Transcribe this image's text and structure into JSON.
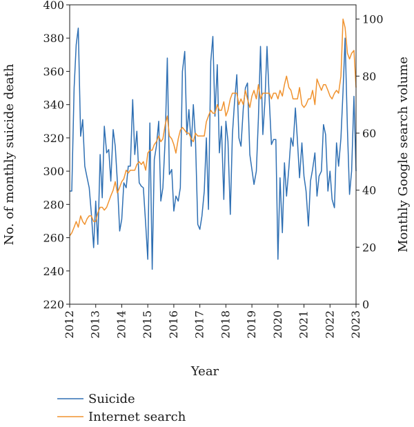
{
  "chart_data": {
    "type": "line",
    "xlabel": "Year",
    "ylabel_left": "No. of monthly suicide death",
    "ylabel_right": "Monthly Google search volume",
    "xlim": [
      2012,
      2023
    ],
    "ylim_left": [
      220,
      400
    ],
    "ylim_right": [
      0,
      105
    ],
    "x_ticks": [
      "2012",
      "2013",
      "2014",
      "2015",
      "2016",
      "2017",
      "2018",
      "2019",
      "2020",
      "2021",
      "2022",
      "2023"
    ],
    "y_left_ticks": [
      "220",
      "240",
      "260",
      "280",
      "300",
      "320",
      "340",
      "360",
      "380",
      "400"
    ],
    "y_right_ticks": [
      "0",
      "20",
      "40",
      "60",
      "80",
      "100"
    ],
    "grid": false,
    "legend_position": "bottom-left",
    "series": [
      {
        "name": "Suicide",
        "axis": "left",
        "color": "#2e6fb3",
        "x": [
          2012.0,
          2012.08,
          2012.17,
          2012.25,
          2012.33,
          2012.42,
          2012.5,
          2012.58,
          2012.67,
          2012.75,
          2012.83,
          2012.92,
          2013.0,
          2013.08,
          2013.17,
          2013.25,
          2013.33,
          2013.42,
          2013.5,
          2013.58,
          2013.67,
          2013.75,
          2013.83,
          2013.92,
          2014.0,
          2014.08,
          2014.17,
          2014.25,
          2014.33,
          2014.42,
          2014.5,
          2014.58,
          2014.67,
          2014.75,
          2014.83,
          2014.92,
          2015.0,
          2015.08,
          2015.17,
          2015.25,
          2015.33,
          2015.42,
          2015.5,
          2015.58,
          2015.67,
          2015.75,
          2015.83,
          2015.92,
          2016.0,
          2016.08,
          2016.17,
          2016.25,
          2016.33,
          2016.42,
          2016.5,
          2016.58,
          2016.67,
          2016.75,
          2016.83,
          2016.92,
          2017.0,
          2017.08,
          2017.17,
          2017.25,
          2017.33,
          2017.42,
          2017.5,
          2017.58,
          2017.67,
          2017.75,
          2017.83,
          2017.92,
          2018.0,
          2018.08,
          2018.17,
          2018.25,
          2018.33,
          2018.42,
          2018.5,
          2018.58,
          2018.67,
          2018.75,
          2018.83,
          2018.92,
          2019.0,
          2019.08,
          2019.17,
          2019.25,
          2019.33,
          2019.42,
          2019.5,
          2019.58,
          2019.67,
          2019.75,
          2019.83,
          2019.92,
          2020.0,
          2020.08,
          2020.17,
          2020.25,
          2020.33,
          2020.42,
          2020.5,
          2020.58,
          2020.67,
          2020.75,
          2020.83,
          2020.92,
          2021.0,
          2021.08,
          2021.17,
          2021.25,
          2021.33,
          2021.42,
          2021.5,
          2021.58,
          2021.67,
          2021.75,
          2021.83,
          2021.92,
          2022.0,
          2022.08,
          2022.17,
          2022.25,
          2022.33,
          2022.42,
          2022.5,
          2022.58,
          2022.67,
          2022.75,
          2022.83,
          2022.92,
          2023.0
        ],
        "y": [
          288,
          288,
          350,
          376,
          386,
          321,
          331,
          303,
          296,
          290,
          275,
          254,
          282,
          256,
          310,
          284,
          327,
          311,
          313,
          294,
          325,
          315,
          294,
          264,
          271,
          293,
          290,
          303,
          303,
          343,
          310,
          324,
          293,
          291,
          290,
          268,
          247,
          329,
          241,
          307,
          315,
          330,
          282,
          290,
          320,
          368,
          298,
          301,
          276,
          285,
          282,
          290,
          360,
          372,
          322,
          337,
          315,
          340,
          320,
          268,
          265,
          273,
          288,
          320,
          277,
          366,
          381,
          333,
          364,
          311,
          327,
          283,
          330,
          318,
          274,
          322,
          341,
          358,
          320,
          315,
          338,
          350,
          353,
          310,
          301,
          292,
          300,
          332,
          375,
          322,
          342,
          375,
          342,
          316,
          319,
          319,
          247,
          296,
          263,
          305,
          285,
          302,
          320,
          315,
          338,
          318,
          296,
          317,
          297,
          288,
          267,
          294,
          301,
          311,
          285,
          297,
          300,
          328,
          322,
          288,
          300,
          283,
          278,
          317,
          303,
          320,
          348,
          380,
          325,
          286,
          300,
          345,
          300
        ]
      },
      {
        "name": "Internet search",
        "axis": "right",
        "color": "#f0922e",
        "x": [
          2012.0,
          2012.08,
          2012.17,
          2012.25,
          2012.33,
          2012.42,
          2012.5,
          2012.58,
          2012.67,
          2012.75,
          2012.83,
          2012.92,
          2013.0,
          2013.08,
          2013.17,
          2013.25,
          2013.33,
          2013.42,
          2013.5,
          2013.58,
          2013.67,
          2013.75,
          2013.83,
          2013.92,
          2014.0,
          2014.08,
          2014.17,
          2014.25,
          2014.33,
          2014.42,
          2014.5,
          2014.58,
          2014.67,
          2014.75,
          2014.83,
          2014.92,
          2015.0,
          2015.08,
          2015.17,
          2015.25,
          2015.33,
          2015.42,
          2015.5,
          2015.58,
          2015.67,
          2015.75,
          2015.83,
          2015.92,
          2016.0,
          2016.08,
          2016.17,
          2016.25,
          2016.33,
          2016.42,
          2016.5,
          2016.58,
          2016.67,
          2016.75,
          2016.83,
          2016.92,
          2017.0,
          2017.08,
          2017.17,
          2017.25,
          2017.33,
          2017.42,
          2017.5,
          2017.58,
          2017.67,
          2017.75,
          2017.83,
          2017.92,
          2018.0,
          2018.08,
          2018.17,
          2018.25,
          2018.33,
          2018.42,
          2018.5,
          2018.58,
          2018.67,
          2018.75,
          2018.83,
          2018.92,
          2019.0,
          2019.08,
          2019.17,
          2019.25,
          2019.33,
          2019.42,
          2019.5,
          2019.58,
          2019.67,
          2019.75,
          2019.83,
          2019.92,
          2020.0,
          2020.08,
          2020.17,
          2020.25,
          2020.33,
          2020.42,
          2020.5,
          2020.58,
          2020.67,
          2020.75,
          2020.83,
          2020.92,
          2021.0,
          2021.08,
          2021.17,
          2021.25,
          2021.33,
          2021.42,
          2021.5,
          2021.58,
          2021.67,
          2021.75,
          2021.83,
          2021.92,
          2022.0,
          2022.08,
          2022.17,
          2022.25,
          2022.33,
          2022.42,
          2022.5,
          2022.58,
          2022.67,
          2022.75,
          2022.83,
          2022.92,
          2023.0
        ],
        "y": [
          24,
          25,
          27,
          29,
          27,
          31,
          29,
          28,
          30,
          31,
          31,
          29,
          29,
          32,
          34,
          34,
          33,
          34,
          36,
          38,
          40,
          43,
          39,
          41,
          43,
          44,
          47,
          46,
          47,
          47,
          47,
          49,
          50,
          49,
          50,
          47,
          53,
          54,
          54,
          56,
          57,
          59,
          57,
          58,
          63,
          66,
          59,
          58,
          56,
          53,
          58,
          61,
          62,
          61,
          60,
          60,
          58,
          57,
          60,
          59,
          59,
          59,
          59,
          64,
          66,
          68,
          67,
          67,
          70,
          68,
          68,
          71,
          66,
          68,
          72,
          74,
          74,
          74,
          70,
          72,
          70,
          75,
          72,
          69,
          73,
          75,
          72,
          77,
          72,
          74,
          74,
          74,
          74,
          72,
          74,
          74,
          72,
          75,
          73,
          77,
          80,
          76,
          75,
          72,
          72,
          72,
          76,
          70,
          69,
          70,
          72,
          72,
          75,
          70,
          79,
          77,
          75,
          77,
          77,
          75,
          73,
          72,
          74,
          75,
          74,
          80,
          100,
          97,
          88,
          86,
          88,
          89,
          76
        ]
      }
    ]
  }
}
